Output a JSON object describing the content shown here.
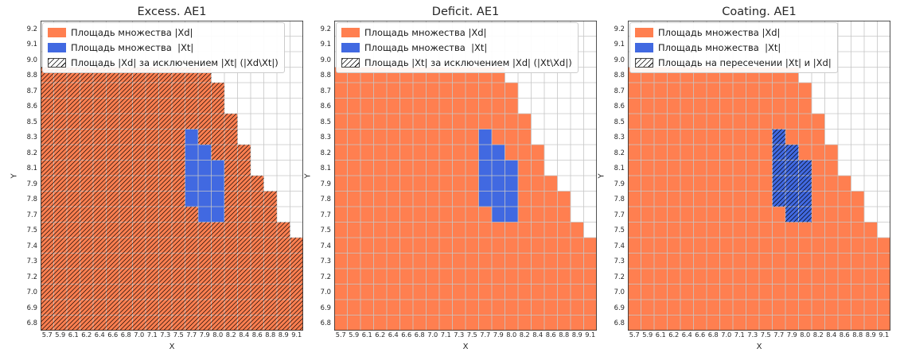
{
  "figure": {
    "background": "#ffffff",
    "orange": "#ff7f50",
    "blue": "#4169e1",
    "grid_color": "#c6c6c6",
    "hatch_color": "#000000",
    "border_color": "#333333"
  },
  "axes": {
    "xlabel": "X",
    "ylabel": "Y"
  },
  "chart_data": {
    "type": "heatmap",
    "grid": {
      "cols": 20,
      "rows": 20
    },
    "x_ticks": [
      "5.7",
      "5.9",
      "6.1",
      "6.2",
      "6.4",
      "6.6",
      "6.8",
      "7.0",
      "7.1",
      "7.3",
      "7.5",
      "7.7",
      "7.9",
      "8.0",
      "8.2",
      "8.4",
      "8.6",
      "8.8",
      "8.9",
      "9.1"
    ],
    "y_ticks": [
      "9.2",
      "9.1",
      "9.0",
      "8.8",
      "8.7",
      "8.6",
      "8.5",
      "8.3",
      "8.2",
      "8.1",
      "7.9",
      "7.8",
      "7.7",
      "7.5",
      "7.4",
      "7.3",
      "7.2",
      "7.0",
      "6.9",
      "6.8"
    ],
    "xd_region_cols_by_row": [
      0,
      0,
      0,
      13,
      14,
      14,
      15,
      15,
      16,
      16,
      17,
      18,
      18,
      19,
      20,
      20,
      20,
      20,
      20,
      20
    ],
    "xt_region_col_span_by_row": {
      "7": [
        11,
        11
      ],
      "8": [
        11,
        12
      ],
      "9": [
        11,
        13
      ],
      "10": [
        11,
        13
      ],
      "11": [
        11,
        13
      ],
      "12": [
        12,
        13
      ]
    },
    "panels": [
      {
        "title": "Excess. AE1",
        "hatch_region": "xd_minus_xt",
        "legend": [
          {
            "swatch": "xd",
            "label": "Площадь множества |Xd|"
          },
          {
            "swatch": "xt",
            "label": "Площадь множества  |Xt|"
          },
          {
            "swatch": "hatch",
            "label": "Площадь |Xd| за исключением |Xt| (|Xd\\Xt|)"
          }
        ]
      },
      {
        "title": "Deficit. AE1",
        "hatch_region": "xt_minus_xd",
        "legend": [
          {
            "swatch": "xd",
            "label": "Площадь множества |Xd|"
          },
          {
            "swatch": "xt",
            "label": "Площадь множества  |Xt|"
          },
          {
            "swatch": "hatch",
            "label": "Площадь |Xt| за исключением |Xd| (|Xt\\Xd|)"
          }
        ]
      },
      {
        "title": "Coating. AE1",
        "hatch_region": "xt_and_xd",
        "legend": [
          {
            "swatch": "xd",
            "label": "Площадь множества |Xd|"
          },
          {
            "swatch": "xt",
            "label": "Площадь множества  |Xt|"
          },
          {
            "swatch": "hatch",
            "label": "Площадь на пересечении |Xt| и |Xd|"
          }
        ]
      }
    ]
  }
}
